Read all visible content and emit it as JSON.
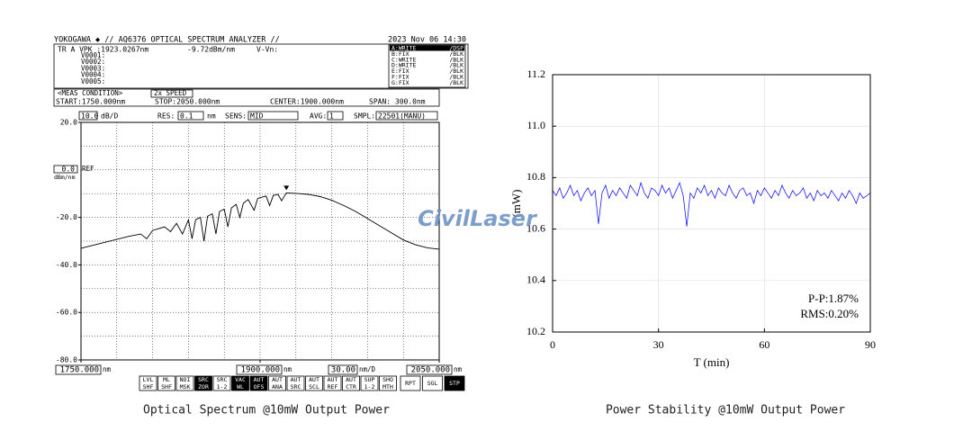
{
  "watermark": "CivilLaser",
  "chart_data": [
    {
      "type": "line",
      "brand": "YOKOGAWA ◆ // AQ6376 OPTICAL SPECTRUM ANALYZER //",
      "date": "2023 Nov 06 14:30",
      "marker": {
        "trace": "TR A VPK :1923.0267nm",
        "level": "-9.72dBm/nm",
        "delta": "V-Vn:",
        "lines": [
          "V0001:",
          "V0002:",
          "V0003:",
          "V0004:",
          "V0005:"
        ]
      },
      "traces": [
        [
          "A:WRITE",
          "/DSP"
        ],
        [
          "B:FIX",
          "/BLK"
        ],
        [
          "C:WRITE",
          "/BLK"
        ],
        [
          "D:WRITE",
          "/BLK"
        ],
        [
          "E:FIX",
          "/BLK"
        ],
        [
          "F:FIX",
          "/BLK"
        ],
        [
          "G:FIX",
          "/BLK"
        ]
      ],
      "meas": {
        "title": "<MEAS CONDITION>",
        "speed": "2x SPEED",
        "start": "START:1750.000nm",
        "stop": "STOP:2050.000nm",
        "center": "CENTER:1900.000nm",
        "span": "SPAN: 300.0nm"
      },
      "settings": [
        "10.0",
        "dB/D",
        "RES:",
        "0.1",
        "nm",
        "SENS:",
        "MID",
        "AVG:",
        "1",
        "SMPL:",
        "22501(MANU)"
      ],
      "ref": {
        "value": "0.0",
        "label": "REF",
        "unit": "dBm/nm"
      },
      "x": [
        1750,
        1770,
        1790,
        1800,
        1805,
        1810,
        1820,
        1825,
        1830,
        1835,
        1840,
        1843,
        1846,
        1850,
        1853,
        1856,
        1860,
        1863,
        1866,
        1870,
        1873,
        1876,
        1880,
        1883,
        1886,
        1890,
        1895,
        1898,
        1905,
        1908,
        1911,
        1915,
        1918,
        1922,
        1930,
        1940,
        1950,
        1960,
        1970,
        1980,
        1990,
        2000,
        2010,
        2020,
        2030,
        2040,
        2050
      ],
      "values": [
        -33,
        -30.5,
        -28,
        -27,
        -29,
        -25.5,
        -24,
        -26,
        -22.5,
        -27,
        -21,
        -29,
        -21,
        -20,
        -30,
        -19.5,
        -18.5,
        -27,
        -17.5,
        -16.5,
        -24,
        -16,
        -14.5,
        -20,
        -14,
        -12.5,
        -17,
        -12,
        -11,
        -15,
        -10.8,
        -10.3,
        -13,
        -9.7,
        -9.9,
        -10.3,
        -11.2,
        -12.8,
        -15,
        -17.5,
        -20.5,
        -23.5,
        -26.5,
        -29.5,
        -31.5,
        -32.8,
        -33.4
      ],
      "color": "#000000",
      "xlim": [
        1750,
        2050
      ],
      "ylim": [
        -80,
        20
      ],
      "yticks": [
        {
          "value": 20,
          "label": "20.0"
        },
        {
          "value": -20,
          "label": "-20.0"
        },
        {
          "value": -40,
          "label": "-40.0"
        },
        {
          "value": -60,
          "label": "-60.0"
        },
        {
          "value": -80,
          "label": "-80.0"
        }
      ],
      "xticks": [
        {
          "value": 1750,
          "label": "1750.000"
        },
        {
          "value": 1900,
          "label": "1900.000"
        },
        {
          "value": 2050,
          "label": "2050.000"
        }
      ],
      "xunit": "nm",
      "xdiv": "30.00",
      "xdiv_unit": "nm/D",
      "softkeys": [
        {
          "lines": [
            "LVL",
            "SHF"
          ],
          "on": false
        },
        {
          "lines": [
            "ML",
            "SHF"
          ],
          "on": false
        },
        {
          "lines": [
            "NOI",
            "MSK"
          ],
          "on": false
        },
        {
          "lines": [
            "SRC",
            "ZOR"
          ],
          "on": true
        },
        {
          "lines": [
            "SRC",
            "1-2"
          ],
          "on": false
        },
        {
          "lines": [
            "VAC",
            "WL"
          ],
          "on": true
        },
        {
          "lines": [
            "AUT",
            "OFS"
          ],
          "on": true
        },
        {
          "lines": [
            "AUT",
            "ANA"
          ],
          "on": false
        },
        {
          "lines": [
            "AUT",
            "SRC"
          ],
          "on": false
        },
        {
          "lines": [
            "AUT",
            "SCL"
          ],
          "on": false
        },
        {
          "lines": [
            "AUT",
            "REF"
          ],
          "on": false
        },
        {
          "lines": [
            "AUT",
            "CTR"
          ],
          "on": false
        },
        {
          "lines": [
            "SUP",
            "1-2"
          ],
          "on": false
        },
        {
          "lines": [
            "SHO",
            "MTH"
          ],
          "on": false
        },
        {
          "lines": [
            "RPT"
          ],
          "on": false
        },
        {
          "lines": [
            "SGL"
          ],
          "on": false
        },
        {
          "lines": [
            "STP"
          ],
          "on": true
        }
      ],
      "caption": "Optical Spectrum @10mW Output Power"
    },
    {
      "type": "line",
      "x": [
        0,
        1,
        2,
        3,
        4,
        5,
        6,
        7,
        8,
        9,
        10,
        11,
        12,
        13,
        14,
        15,
        16,
        17,
        18,
        19,
        20,
        21,
        22,
        23,
        24,
        25,
        26,
        27,
        28,
        29,
        30,
        31,
        32,
        33,
        34,
        35,
        36,
        37,
        38,
        39,
        40,
        41,
        42,
        43,
        44,
        45,
        46,
        47,
        48,
        49,
        50,
        51,
        52,
        53,
        54,
        55,
        56,
        57,
        58,
        59,
        60,
        61,
        62,
        63,
        64,
        65,
        66,
        67,
        68,
        69,
        70,
        71,
        72,
        73,
        74,
        75,
        76,
        77,
        78,
        79,
        80,
        81,
        82,
        83,
        84,
        85,
        86,
        87,
        88,
        89,
        90
      ],
      "values": [
        10.75,
        10.73,
        10.76,
        10.72,
        10.74,
        10.77,
        10.73,
        10.75,
        10.71,
        10.74,
        10.76,
        10.73,
        10.75,
        10.62,
        10.74,
        10.77,
        10.72,
        10.75,
        10.73,
        10.76,
        10.74,
        10.72,
        10.77,
        10.75,
        10.73,
        10.78,
        10.74,
        10.72,
        10.76,
        10.75,
        10.73,
        10.77,
        10.74,
        10.76,
        10.72,
        10.75,
        10.78,
        10.73,
        10.61,
        10.74,
        10.72,
        10.76,
        10.74,
        10.77,
        10.73,
        10.75,
        10.72,
        10.76,
        10.74,
        10.73,
        10.77,
        10.74,
        10.72,
        10.75,
        10.76,
        10.73,
        10.74,
        10.7,
        10.75,
        10.73,
        10.76,
        10.74,
        10.72,
        10.75,
        10.73,
        10.77,
        10.74,
        10.72,
        10.75,
        10.73,
        10.74,
        10.76,
        10.72,
        10.74,
        10.71,
        10.75,
        10.73,
        10.74,
        10.72,
        10.75,
        10.73,
        10.71,
        10.74,
        10.72,
        10.75,
        10.73,
        10.7,
        10.74,
        10.72,
        10.73,
        10.74
      ],
      "color": "#1a1aff",
      "xlim": [
        0,
        90
      ],
      "ylim": [
        10.2,
        11.2
      ],
      "xticks": [
        0,
        30,
        60,
        90
      ],
      "yticks": [
        10.2,
        10.4,
        10.6,
        10.8,
        {
          "value": 11,
          "label": "11.0"
        },
        11.2
      ],
      "grid": true,
      "xlabel": "T (min)",
      "ylabel": "(mW)",
      "annotations": [
        "P-P:1.87%",
        "RMS:0.20%"
      ],
      "caption": "Power Stability @10mW Output Power"
    }
  ]
}
